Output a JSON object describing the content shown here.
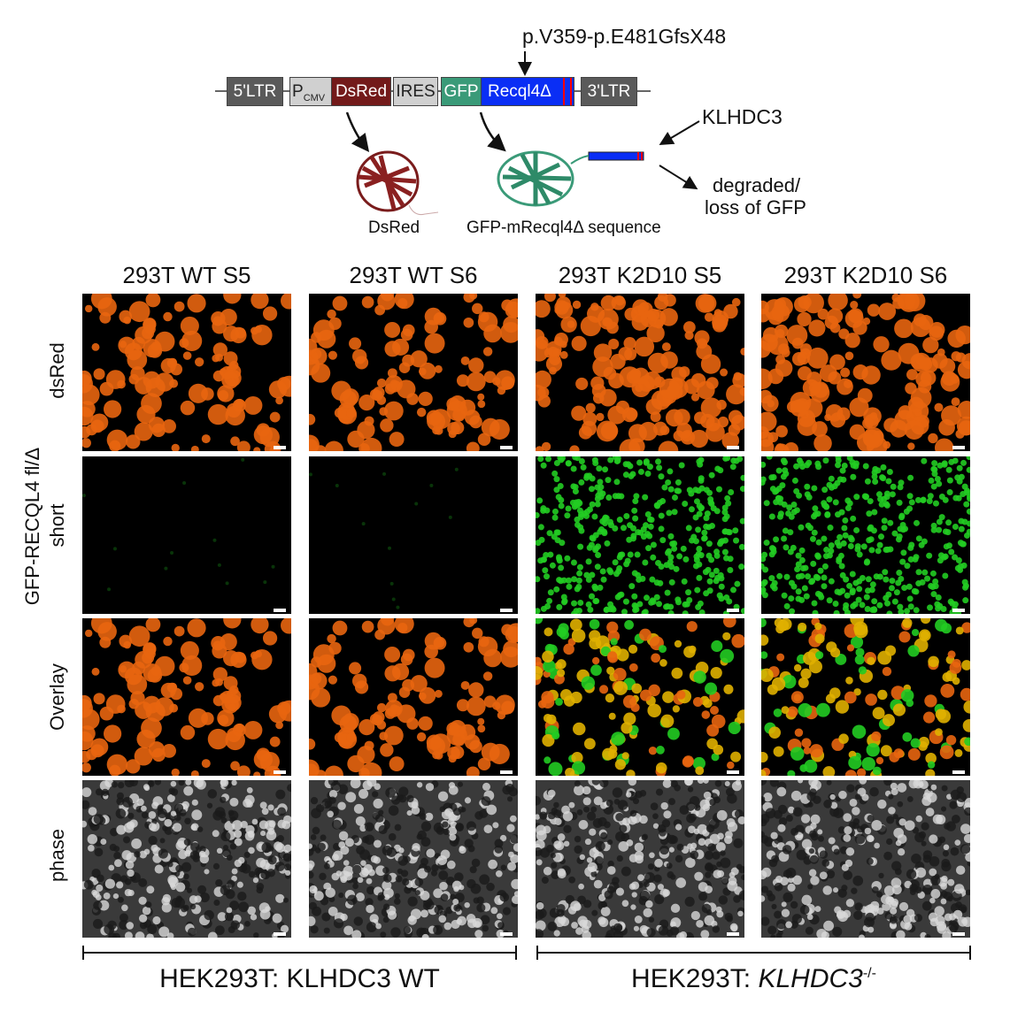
{
  "construct": {
    "mutation_label": "p.V359-p.E481GfsX48",
    "elements": [
      {
        "label": "5'LTR",
        "color": "#5a5a5a"
      },
      {
        "label": "P",
        "sub": "CMV",
        "color": "#d0d0d0"
      },
      {
        "label": "DsRed",
        "color": "#731a1a"
      },
      {
        "label": "IRES",
        "color": "#d0d0d0"
      },
      {
        "label": "GFP",
        "color": "#3a9a78"
      },
      {
        "label": "Recql4Δ",
        "color": "#0a2ef5"
      },
      {
        "label": "3'LTR",
        "color": "#5a5a5a"
      }
    ],
    "dsred_protein_label": "DsRed",
    "gfp_protein_label": "GFP-mRecql4Δ sequence",
    "klhdc3_label": "KLHDC3",
    "degraded_label_1": "degraded/",
    "degraded_label_2": "loss of GFP"
  },
  "grid": {
    "columns": [
      "293T WT S5",
      "293T WT S6",
      "293T K2D10 S5",
      "293T K2D10 S6"
    ],
    "row_group_label": "GFP-RECQL4 fl/Δ",
    "rows": [
      "dsRed",
      "short",
      "Overlay",
      "phase"
    ],
    "colors": {
      "dsred": "#e8650f",
      "gfp": "#22cc22",
      "overlay_merge": "#e0b000"
    }
  },
  "groups": [
    {
      "label": "HEK293T: KLHDC3 WT"
    },
    {
      "label_prefix": "HEK293T: ",
      "label_italic": "KLHDC3",
      "label_sup": "-/-"
    }
  ]
}
